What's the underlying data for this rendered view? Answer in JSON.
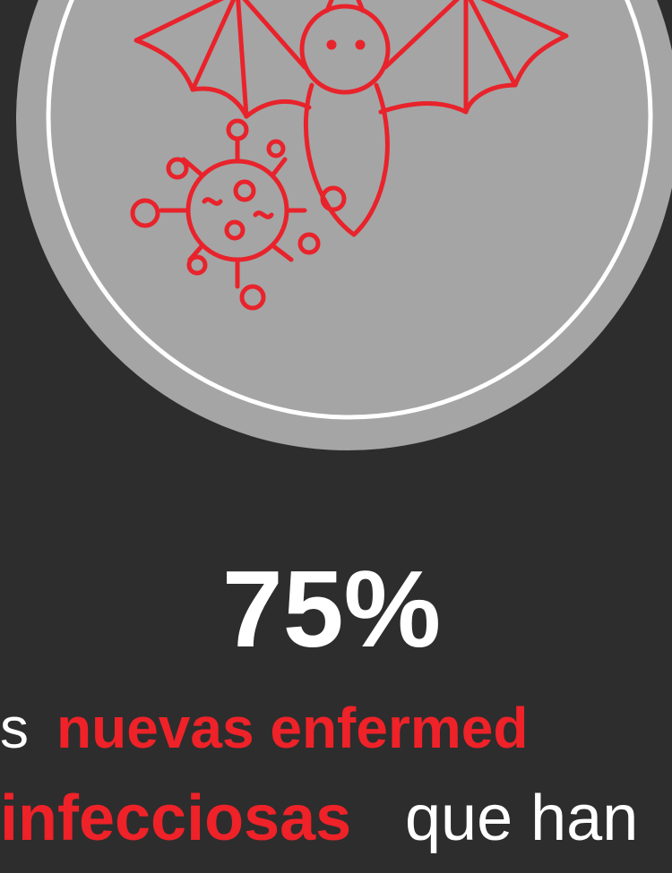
{
  "stat": "75%",
  "text": {
    "line1_start": "s",
    "line1_highlight": "nuevas enfermed",
    "line2_highlight": "infecciosas",
    "line2_end": "que han"
  }
}
